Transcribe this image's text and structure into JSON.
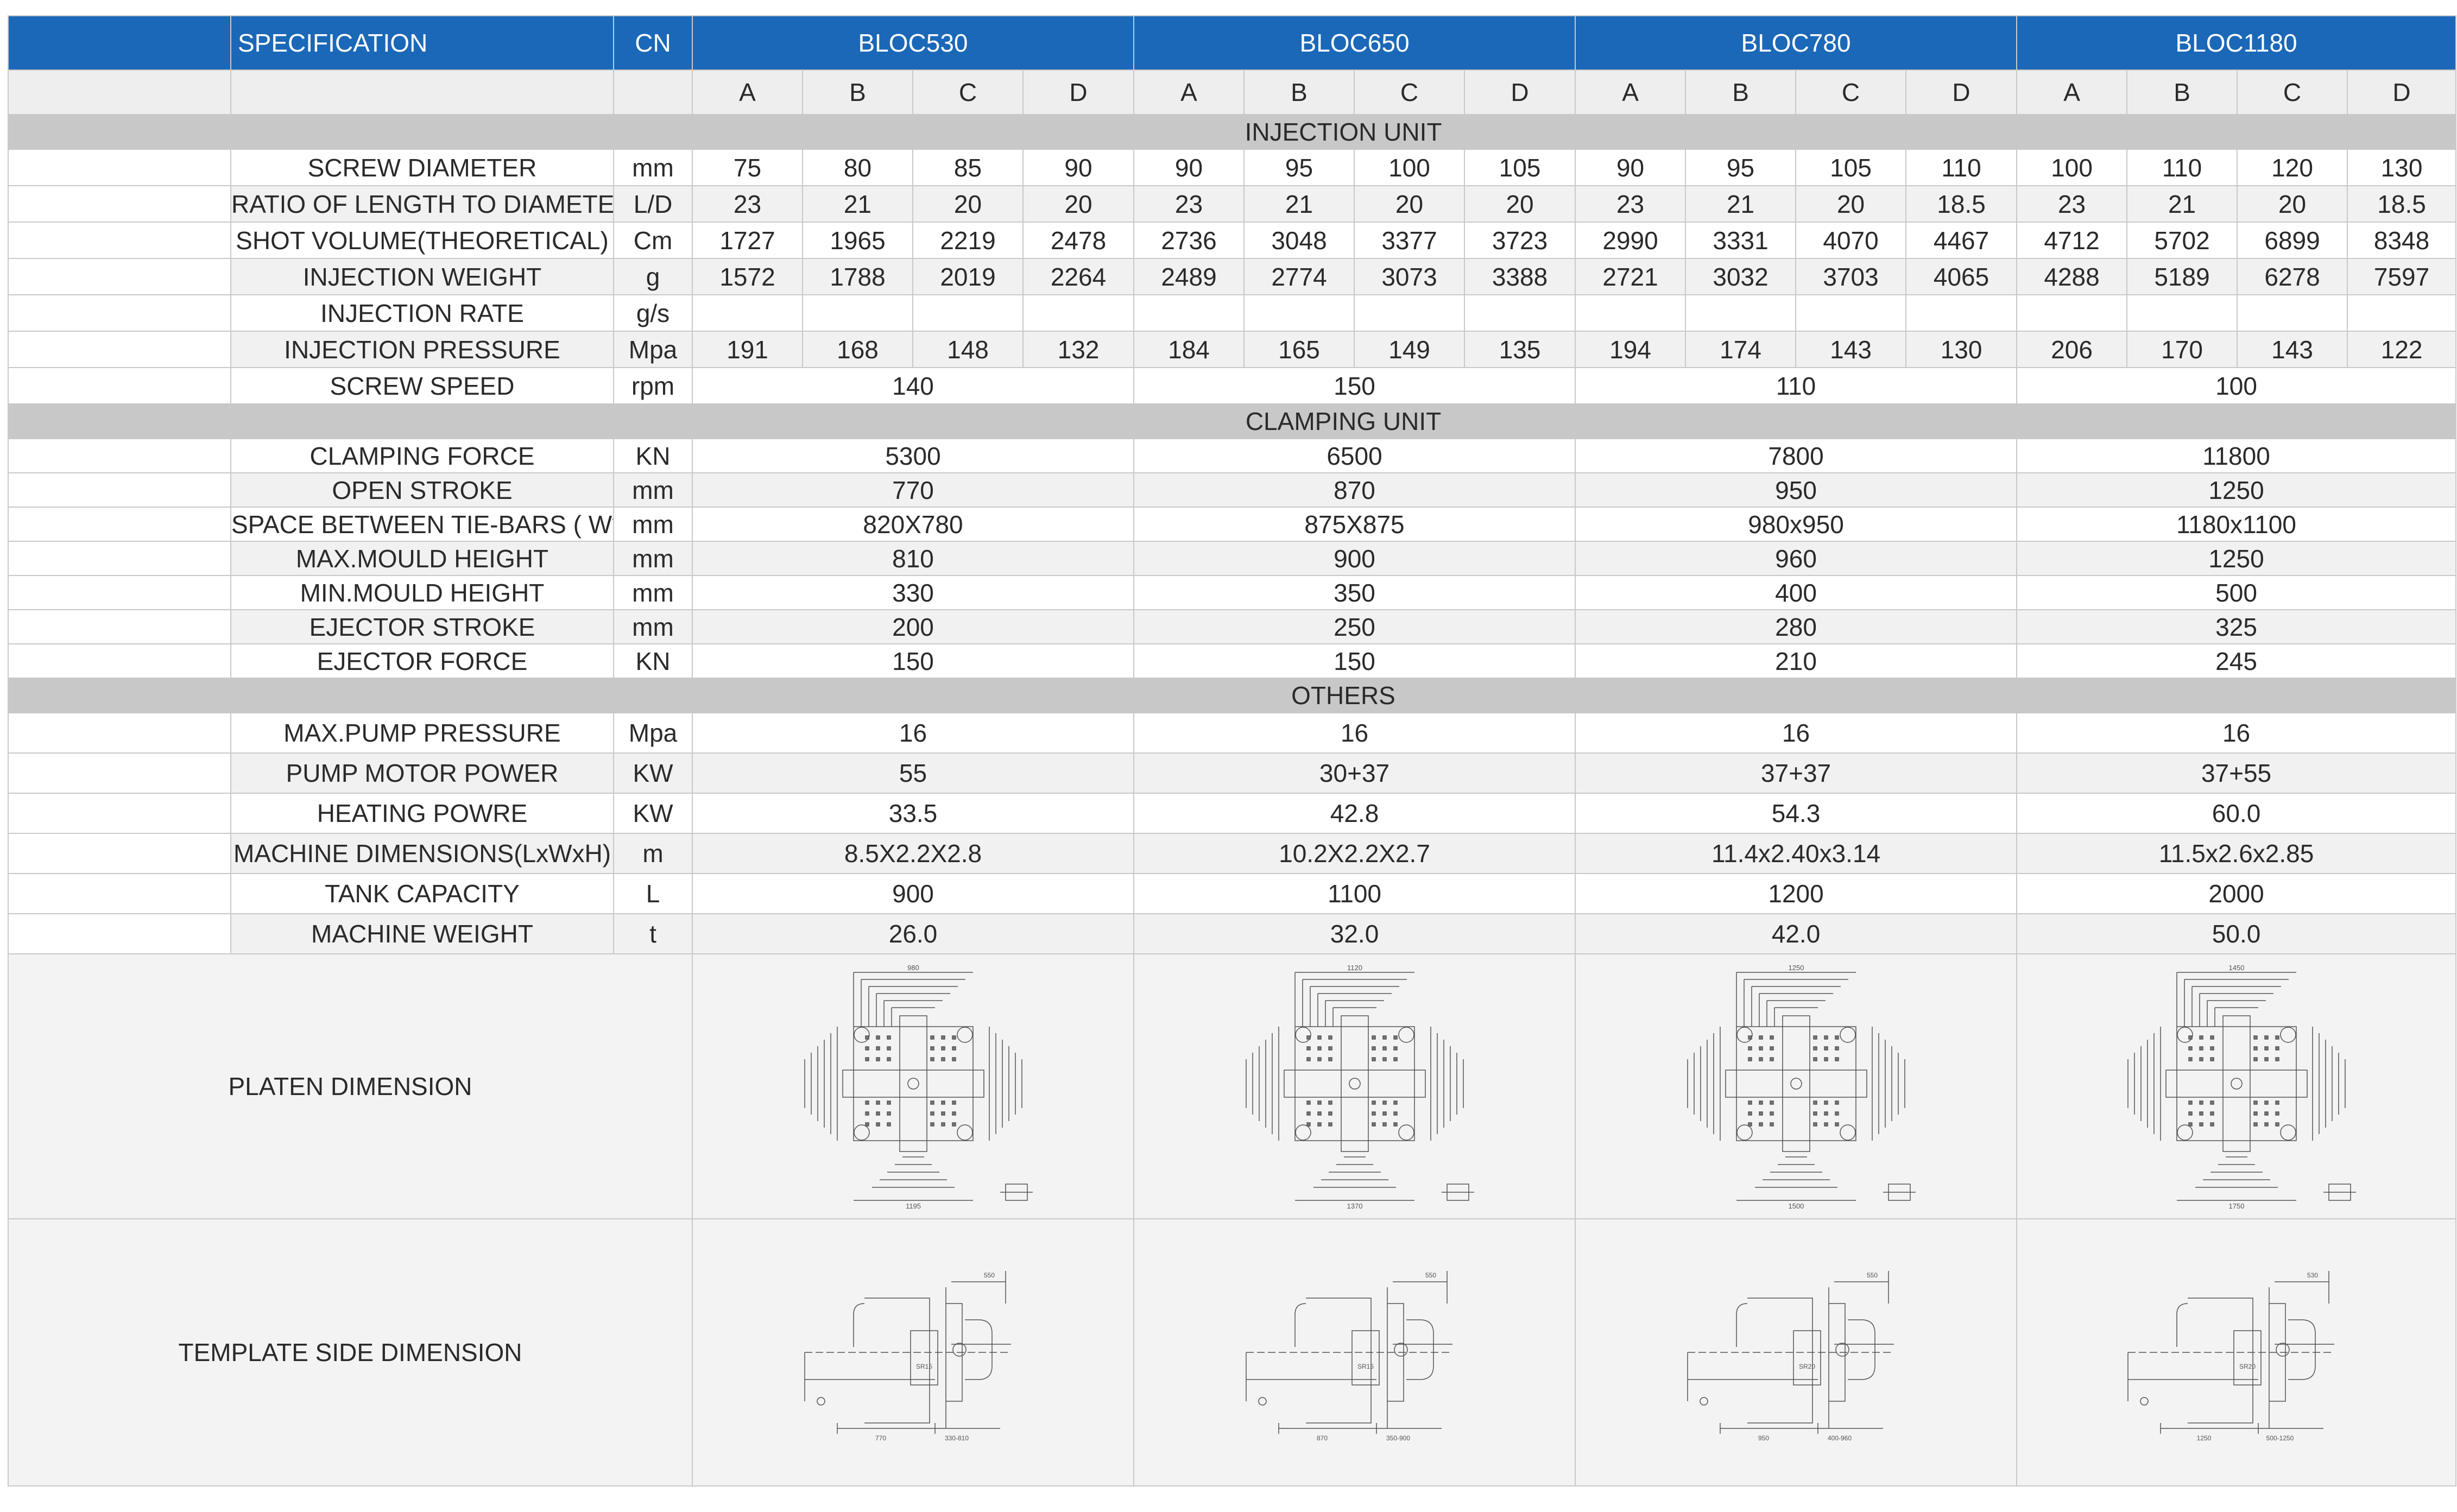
{
  "header": {
    "spec_label": "SPECIFICATION",
    "cn_label": "CN",
    "models": [
      "BLOC530",
      "BLOC650",
      "BLOC780",
      "BLOC1180"
    ],
    "variants": [
      "A",
      "B",
      "C",
      "D"
    ]
  },
  "sections": {
    "injection": "INJECTION UNIT",
    "clamping": "CLAMPING UNIT",
    "others": "OTHERS"
  },
  "injection_rows": [
    {
      "label": "SCREW DIAMETER",
      "unit": "mm",
      "values": [
        "75",
        "80",
        "85",
        "90",
        "90",
        "95",
        "100",
        "105",
        "90",
        "95",
        "105",
        "110",
        "100",
        "110",
        "120",
        "130"
      ]
    },
    {
      "label": "RATIO OF LENGTH TO DIAMETER",
      "unit": "L/D",
      "values": [
        "23",
        "21",
        "20",
        "20",
        "23",
        "21",
        "20",
        "20",
        "23",
        "21",
        "20",
        "18.5",
        "23",
        "21",
        "20",
        "18.5"
      ]
    },
    {
      "label": "SHOT VOLUME(THEORETICAL)",
      "unit": "Cm",
      "values": [
        "1727",
        "1965",
        "2219",
        "2478",
        "2736",
        "3048",
        "3377",
        "3723",
        "2990",
        "3331",
        "4070",
        "4467",
        "4712",
        "5702",
        "6899",
        "8348"
      ]
    },
    {
      "label": "INJECTION WEIGHT",
      "unit": "g",
      "values": [
        "1572",
        "1788",
        "2019",
        "2264",
        "2489",
        "2774",
        "3073",
        "3388",
        "2721",
        "3032",
        "3703",
        "4065",
        "4288",
        "5189",
        "6278",
        "7597"
      ]
    },
    {
      "label": "INJECTION RATE",
      "unit": "g/s",
      "values": [
        "",
        "",
        "",
        "",
        "",
        "",
        "",
        "",
        "",
        "",
        "",
        "",
        "",
        "",
        "",
        ""
      ]
    },
    {
      "label": "INJECTION PRESSURE",
      "unit": "Mpa",
      "values": [
        "191",
        "168",
        "148",
        "132",
        "184",
        "165",
        "149",
        "135",
        "194",
        "174",
        "143",
        "130",
        "206",
        "170",
        "143",
        "122"
      ]
    }
  ],
  "screw_speed": {
    "label": "SCREW SPEED",
    "unit": "rpm",
    "values": [
      "140",
      "150",
      "110",
      "100"
    ]
  },
  "clamping_rows": [
    {
      "label": "CLAMPING FORCE",
      "unit": "KN",
      "values": [
        "5300",
        "6500",
        "7800",
        "11800"
      ]
    },
    {
      "label": "OPEN STROKE",
      "unit": "mm",
      "values": [
        "770",
        "870",
        "950",
        "1250"
      ]
    },
    {
      "label": "SPACE BETWEEN TIE-BARS ( W*H )",
      "unit": "mm",
      "values": [
        "820X780",
        "875X875",
        "980x950",
        "1180x1100"
      ]
    },
    {
      "label": "MAX.MOULD HEIGHT",
      "unit": "mm",
      "values": [
        "810",
        "900",
        "960",
        "1250"
      ]
    },
    {
      "label": "MIN.MOULD HEIGHT",
      "unit": "mm",
      "values": [
        "330",
        "350",
        "400",
        "500"
      ]
    },
    {
      "label": "EJECTOR STROKE",
      "unit": "mm",
      "values": [
        "200",
        "250",
        "280",
        "325"
      ]
    },
    {
      "label": "EJECTOR FORCE",
      "unit": "KN",
      "values": [
        "150",
        "150",
        "210",
        "245"
      ]
    }
  ],
  "other_rows": [
    {
      "label": "MAX.PUMP PRESSURE",
      "unit": "Mpa",
      "values": [
        "16",
        "16",
        "16",
        "16"
      ]
    },
    {
      "label": "PUMP MOTOR POWER",
      "unit": "KW",
      "values": [
        "55",
        "30+37",
        "37+37",
        "37+55"
      ]
    },
    {
      "label": "HEATING POWRE",
      "unit": "KW",
      "values": [
        "33.5",
        "42.8",
        "54.3",
        "60.0"
      ]
    },
    {
      "label": "MACHINE DIMENSIONS(LxWxH)",
      "unit": "m",
      "values": [
        "8.5X2.2X2.8",
        "10.2X2.2X2.7",
        "11.4x2.40x3.14",
        "11.5x2.6x2.85"
      ]
    },
    {
      "label": "TANK CAPACITY",
      "unit": "L",
      "values": [
        "900",
        "1100",
        "1200",
        "2000"
      ]
    },
    {
      "label": "MACHINE WEIGHT",
      "unit": "t",
      "values": [
        "26.0",
        "32.0",
        "42.0",
        "50.0"
      ]
    }
  ],
  "drawings": {
    "platen_label": "PLATEN DIMENSION",
    "template_label": "TEMPLATE SIDE DIMENSION",
    "platen_widths": [
      "980",
      "1120",
      "1250",
      "1450"
    ],
    "platen_bottoms": [
      "1195",
      "1370",
      "1500",
      "1750"
    ],
    "template_labels": [
      {
        "top": "550",
        "sr": "SR15",
        "left": "770",
        "right": "330-810"
      },
      {
        "top": "550",
        "sr": "SR15",
        "left": "870",
        "right": "350-900"
      },
      {
        "top": "550",
        "sr": "SR20",
        "left": "950",
        "right": "400-960"
      },
      {
        "top": "530",
        "sr": "SR20",
        "left": "1250",
        "right": "500-1250"
      }
    ]
  },
  "colors": {
    "header_blue": "#1b68b8",
    "section_grey": "#c8c8c8",
    "row_alt": "#f1f1f1",
    "subheader": "#eeeeee"
  }
}
